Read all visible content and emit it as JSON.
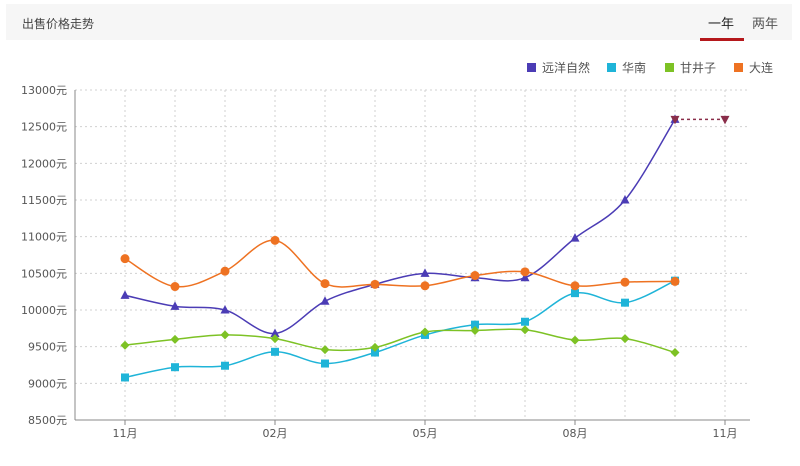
{
  "header": {
    "title": "出售价格走势",
    "tabs": [
      {
        "label": "一年",
        "active": true
      },
      {
        "label": "两年",
        "active": false
      }
    ],
    "accent_color": "#b5181c"
  },
  "chart_data": {
    "type": "line",
    "title": "",
    "xlabel": "",
    "ylabel": "",
    "ylim": [
      8500,
      13000
    ],
    "y_ticks": [
      8500,
      9000,
      9500,
      10000,
      10500,
      11000,
      11500,
      12000,
      12500,
      13000
    ],
    "y_unit": "元",
    "x_tick_labels": [
      {
        "index": 0,
        "label": "11月"
      },
      {
        "index": 3,
        "label": "02月"
      },
      {
        "index": 6,
        "label": "05月"
      },
      {
        "index": 9,
        "label": "08月"
      },
      {
        "index": 12,
        "label": "11月"
      }
    ],
    "x_count": 13,
    "grid": true,
    "legend_position": "top-right",
    "series": [
      {
        "name": "远洋自然",
        "color": "#4b3cb5",
        "marker": "triangle",
        "values": [
          10200,
          10050,
          10000,
          9680,
          10120,
          10350,
          10500,
          10440,
          10440,
          10980,
          11500,
          12600,
          null
        ]
      },
      {
        "name": "华南",
        "color": "#1fb4d8",
        "marker": "square",
        "values": [
          9080,
          9220,
          9240,
          9430,
          9270,
          9420,
          9660,
          9800,
          9840,
          10230,
          10100,
          10400,
          null
        ]
      },
      {
        "name": "甘井子",
        "color": "#7dc225",
        "marker": "diamond",
        "values": [
          9520,
          9600,
          9660,
          9610,
          9460,
          9490,
          9700,
          9720,
          9730,
          9590,
          9610,
          9420,
          null
        ]
      },
      {
        "name": "大连",
        "color": "#ee7222",
        "marker": "circle",
        "values": [
          10700,
          10320,
          10530,
          10950,
          10360,
          10350,
          10330,
          10470,
          10520,
          10330,
          10380,
          10390,
          null
        ]
      }
    ],
    "projection": {
      "series": "远洋自然",
      "color": "#8a2e4a",
      "from": 12600,
      "to": 12600
    }
  }
}
